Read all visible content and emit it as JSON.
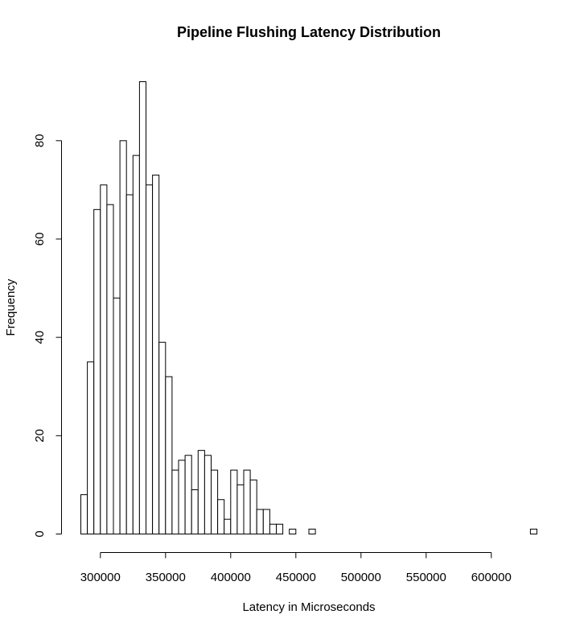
{
  "chart_data": {
    "type": "bar",
    "title": "Pipeline Flushing Latency Distribution",
    "xlabel": "Latency in Microseconds",
    "ylabel": "Frequency",
    "bin_width": 5000,
    "bin_start": 285000,
    "counts": [
      8,
      35,
      66,
      71,
      67,
      48,
      80,
      69,
      77,
      92,
      71,
      73,
      39,
      32,
      13,
      15,
      16,
      9,
      17,
      16,
      13,
      7,
      3,
      13,
      10,
      13,
      11,
      5,
      5,
      2,
      2,
      0,
      1,
      0,
      0,
      1,
      0,
      0,
      0,
      0,
      0,
      0,
      0,
      0,
      0,
      0,
      0,
      0,
      0,
      0,
      0,
      0,
      0,
      0,
      0,
      0,
      0,
      0,
      0,
      0,
      0,
      0,
      0,
      0,
      0,
      0,
      0,
      0,
      0,
      1
    ],
    "x_ticks": [
      "300000",
      "350000",
      "400000",
      "450000",
      "500000",
      "550000",
      "600000"
    ],
    "x_tick_values": [
      300000,
      350000,
      400000,
      450000,
      500000,
      550000,
      600000
    ],
    "y_ticks": [
      "0",
      "20",
      "40",
      "60",
      "80"
    ],
    "y_tick_values": [
      0,
      20,
      40,
      60,
      80
    ],
    "xlim": [
      285000,
      635000
    ],
    "ylim": [
      0,
      92
    ],
    "grid": false,
    "legend": "none"
  }
}
